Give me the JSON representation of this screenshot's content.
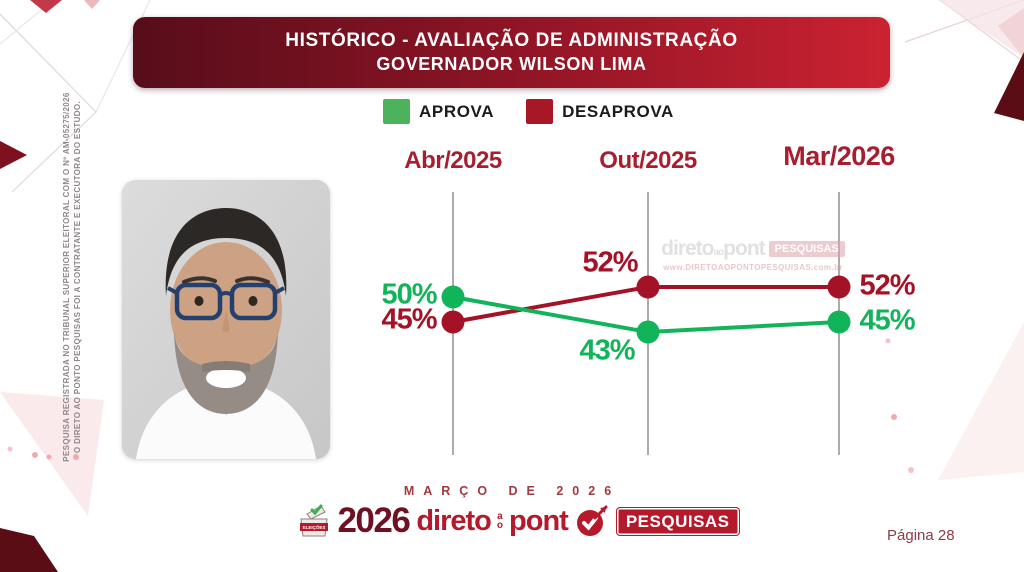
{
  "header": {
    "title_line1": "HISTÓRICO - AVALIAÇÃO DE ADMINISTRAÇÃO",
    "title_line2": "GOVERNADOR WILSON LIMA"
  },
  "sidebar_note": {
    "line1": "PESQUISA REGISTRADA NO TRIBUNAL SUPERIOR ELEITORAL COM O Nº AM-05275/2026",
    "line2": "O DIRETO AO PONTO PESQUISAS FOI A CONTRATANTE E EXECUTORA DO ESTUDO."
  },
  "legend": {
    "items": [
      {
        "label": "APROVA",
        "color": "#4CB35C"
      },
      {
        "label": "DESAPROVA",
        "color": "#A81726"
      }
    ]
  },
  "watermark": {
    "brand1": "direto",
    "brand_small": "ao",
    "brand2": "pont",
    "badge": "PESQUISAS",
    "url": "www.DIRETOAOPONTOPESQUISAS.com.br"
  },
  "footer": {
    "date_label": "MARÇO DE 2026",
    "page_label": "Página 28",
    "logo": {
      "box_label": "ELEIÇÕES",
      "year": "2026",
      "word1": "direto",
      "word_small": "ao",
      "word2": "pont",
      "badge": "PESQUISAS"
    }
  },
  "chart_data": {
    "type": "line",
    "title": "HISTÓRICO - AVALIAÇÃO DE ADMINISTRAÇÃO — GOVERNADOR WILSON LIMA",
    "categories": [
      "Abr/2025",
      "Out/2025",
      "Mar/2026"
    ],
    "series": [
      {
        "name": "APROVA",
        "color": "#12B45A",
        "values": [
          50,
          43,
          45
        ]
      },
      {
        "name": "DESAPROVA",
        "color": "#A31226",
        "values": [
          45,
          52,
          52
        ]
      }
    ],
    "value_suffix": "%",
    "label_positions": {
      "APROVA": [
        "left",
        "below",
        "right"
      ],
      "DESAPROVA": [
        "left",
        "above",
        "right"
      ]
    },
    "grid": "vertical-category-lines",
    "yaxis_visible": false,
    "legend_position": "top"
  }
}
